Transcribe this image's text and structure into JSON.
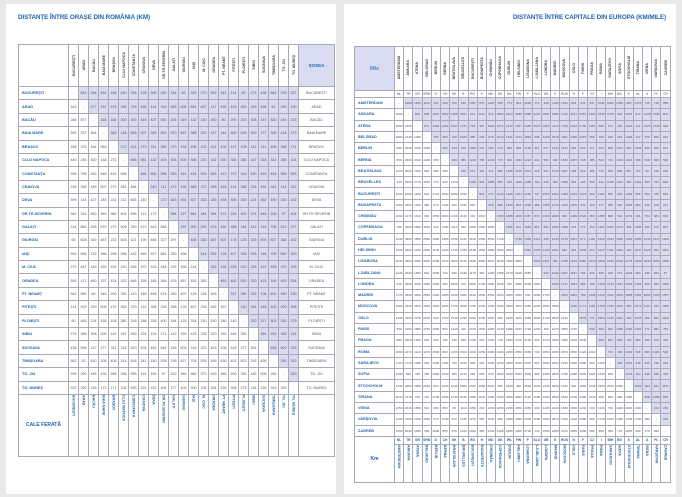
{
  "left_page": {
    "title": "DISTANȚE ÎNTRE ORAȘE DIN ROMÂNIA (KM)",
    "road_label": "ȘOSEA",
    "rail_label": "CALE FERATĂ",
    "cities": [
      "BUCUREȘTI",
      "ARAD",
      "BACĂU",
      "BAIA MARE",
      "BRAȘOV",
      "CLUJ NAPOCA",
      "CONSTANȚA",
      "CRAIOVA",
      "DEVA",
      "DR.TR.SEVERIN",
      "GALAȚI",
      "GIURGIU",
      "IAȘI",
      "M. CIUC",
      "ORADEA",
      "PT. NEAMȚ",
      "PITEȘTI",
      "PLOIEȘTI",
      "SIBIU",
      "SUCEAVA",
      "TIMIȘOARA",
      "TG. JIU",
      "TG. MUREȘ"
    ],
    "distances_upper": [
      [
        543,
        284,
        592,
        168,
        440,
        256,
        228,
        399,
        340,
        244,
        65,
        393,
        270,
        592,
        342,
        114,
        60,
        274,
        438,
        562,
        299,
        337
      ],
      [
        577,
        257,
        375,
        246,
        799,
        395,
        144,
        316,
        683,
        608,
        654,
        487,
        117,
        590,
        429,
        483,
        269,
        598,
        52,
        290,
        290
      ],
      [
        364,
        164,
        300,
        300,
        445,
        427,
        550,
        206,
        349,
        132,
        140,
        450,
        60,
        290,
        224,
        308,
        147,
        620,
        445,
        215
      ],
      [
        363,
        148,
        848,
        507,
        283,
        553,
        570,
        657,
        368,
        320,
        157,
        344,
        509,
        535,
        300,
        277,
        305,
        434,
        173
      ],
      [
        272,
        424,
        270,
        231,
        380,
        270,
        233,
        296,
        102,
        424,
        200,
        137,
        108,
        142,
        311,
        406,
        268,
        171
      ],
      [
        696,
        381,
        132,
        404,
        506,
        505,
        396,
        210,
        152,
        330,
        354,
        380,
        167,
        318,
        314,
        288,
        104
      ],
      [
        484,
        655,
        596,
        250,
        321,
        432,
        526,
        848,
        410,
        370,
        316,
        530,
        520,
        818,
        555,
        593
      ],
      [
        240,
        111,
        472,
        190,
        565,
        372,
        395,
        448,
        114,
        288,
        224,
        534,
        341,
        114,
        322
      ],
      [
        172,
        643,
        464,
        527,
        333,
        185,
        458,
        306,
        339,
        124,
        462,
        150,
        150,
        152
      ],
      [
        584,
        327,
        681,
        484,
        364,
        574,
        226,
        400,
        274,
        645,
        208,
        97,
        404
      ],
      [
        297,
        250,
        292,
        676,
        260,
        358,
        184,
        412,
        316,
        795,
        512,
        377
      ],
      [
        458,
        335,
        657,
        407,
        178,
        125,
        339,
        503,
        627,
        364,
        402
      ],
      [
        244,
        532,
        126,
        407,
        334,
        425,
        146,
        705,
        560,
        300
      ],
      [
        362,
        126,
        239,
        210,
        226,
        222,
        539,
        370,
        105
      ],
      [
        463,
        482,
        530,
        320,
        423,
        169,
        400,
        254
      ],
      [
        337,
        280,
        332,
        106,
        630,
        480,
        230
      ],
      [
        140,
        164,
        448,
        402,
        200,
        308
      ],
      [
        250,
        377,
        503,
        330,
        279
      ],
      [
        361,
        292,
        182,
        118
      ],
      [
        626,
        500,
        225
      ],
      [
        250,
        343
      ],
      [
        320
      ]
    ]
  },
  "right_page": {
    "title": "DISTANȚE ÎNTRE CAPITALE DIN EUROPA (KM/MILE)",
    "mile_label": "Mile",
    "km_label": "Km",
    "cities": [
      "AMSTERDAM",
      "ANKARA",
      "ATENA",
      "BELGRAD",
      "BERLIN",
      "BERNA",
      "BRATISLAVA",
      "BRUXELLES",
      "BUCUREȘTI",
      "BUDAPESTA",
      "CHIȘINĂU",
      "COPENHAGA",
      "DUBLIN",
      "HELSINKI",
      "LISABONA",
      "LJUBLJANA",
      "LONDRA",
      "MADRID",
      "MOSCOVA",
      "OSLO",
      "PARIS",
      "PRAGA",
      "ROMA",
      "SARAJEVO",
      "SOFIA",
      "STOCKHOLM",
      "TIRANA",
      "VIENA",
      "VARȘOVIA",
      "ZAGREB"
    ],
    "codes": [
      "NL",
      "TR",
      "GR",
      "SRB",
      "D",
      "CH",
      "SK",
      "B",
      "RO",
      "H",
      "MD",
      "DK",
      "IRL",
      "FIN",
      "P",
      "SLO",
      "GB",
      "E",
      "RUS",
      "N",
      "F",
      "CZ",
      "I",
      "BIH",
      "BG",
      "S",
      "AL",
      "A",
      "PL",
      "CR"
    ],
    "km_upper": [
      [
        3200,
        2950,
        1800,
        650,
        850,
        1210,
        210,
        2200,
        1400,
        2290,
        780,
        1240,
        1520,
        2240,
        1240,
        540,
        1770,
        2480,
        1340,
        500,
        880,
        1660,
        1720,
        2180,
        1440,
        2210,
        1150,
        1200,
        1350
      ],
      [
        1330,
        1440,
        2650,
        2900,
        2020,
        3000,
        1000,
        1820,
        1470,
        3000,
        3900,
        2960,
        4600,
        2030,
        3300,
        4000,
        2320,
        3400,
        3150,
        2300,
        2470,
        1730,
        840,
        3250,
        1310,
        2040,
        2100,
        1830
      ],
      [
        1080,
        2340,
        2340,
        1620,
        2770,
        1180,
        1460,
        1610,
        2690,
        3560,
        3150,
        4000,
        1650,
        3030,
        3400,
        2870,
        3270,
        2880,
        1900,
        1120,
        1080,
        790,
        3080,
        720,
        1650,
        2150,
        1480
      ],
      [
        1280,
        1430,
        560,
        1650,
        620,
        380,
        930,
        1630,
        2480,
        2050,
        3000,
        540,
        1960,
        2540,
        1900,
        2230,
        1750,
        900,
        1270,
        290,
        390,
        2040,
        720,
        610,
        1050,
        390
      ],
      [
        950,
        680,
        770,
        1710,
        870,
        1550,
        440,
        1580,
        1100,
        2800,
        1000,
        1090,
        2320,
        1820,
        840,
        1050,
        350,
        1500,
        1300,
        1660,
        810,
        1700,
        680,
        570,
        1000
      ],
      [
        980,
        620,
        1960,
        1140,
        2000,
        1150,
        1480,
        2130,
        1970,
        710,
        900,
        1500,
        2550,
        1750,
        560,
        780,
        860,
        1160,
        1640,
        1630,
        1560,
        850,
        1330,
        850
      ],
      [
        1130,
        1080,
        200,
        1160,
        1110,
        2150,
        1730,
        2920,
        390,
        1500,
        2430,
        1750,
        1510,
        1310,
        330,
        1150,
        730,
        980,
        1540,
        1230,
        80,
        670,
        370
      ],
      [
        2150,
        1330,
        2230,
        940,
        1040,
        1780,
        2070,
        1230,
        370,
        1580,
        2500,
        1490,
        310,
        900,
        1500,
        1670,
        2110,
        1580,
        2030,
        1110,
        1230,
        1320
      ],
      [
        830,
        440,
        2000,
        3100,
        2190,
        3640,
        1170,
        2500,
        3160,
        1760,
        2440,
        2370,
        1330,
        1900,
        900,
        390,
        2340,
        1060,
        1050,
        1270,
        1020
      ],
      [
        1010,
        1300,
        2300,
        1550,
        3090,
        460,
        1700,
        2600,
        1780,
        1730,
        1500,
        530,
        1250,
        620,
        800,
        1650,
        1100,
        240,
        680,
        350
      ],
      [
        1850,
        3040,
        1860,
        3810,
        1400,
        2580,
        3330,
        1350,
        2360,
        2450,
        1430,
        2180,
        1300,
        830,
        2220,
        1450,
        1230,
        1100,
        1340
      ],
      [
        1700,
        1000,
        3000,
        1380,
        1290,
        2500,
        2100,
        600,
        1240,
        730,
        1900,
        1690,
        2050,
        650,
        2100,
        1050,
        920,
        1380
      ],
      [
        2800,
        2300,
        2270,
        750,
        2000,
        3500,
        2200,
        1080,
        1900,
        2450,
        2660,
        3100,
        2400,
        3050,
        2150,
        2280,
        2360
      ],
      [
        3800,
        2100,
        2000,
        3300,
        1100,
        1100,
        2150,
        1470,
        2650,
        2240,
        2560,
        480,
        2650,
        1650,
        1050,
        1900
      ],
      [
        2580,
        2200,
        630,
        4450,
        3480,
        1740,
        2700,
        2580,
        2970,
        3530,
        3500,
        3120,
        2950,
        3300,
        2720
      ],
      [
        1560,
        2080,
        2200,
        1900,
        1230,
        690,
        780,
        560,
        920,
        1930,
        1100,
        380,
        1100,
        140
      ],
      [
        1720,
        2850,
        1740,
        460,
        1270,
        1850,
        2050,
        2480,
        1930,
        2400,
        1480,
        1600,
        1690
      ],
      [
        3900,
        3000,
        1270,
        2250,
        1950,
        2450,
        2950,
        3050,
        2550,
        2420,
        2870,
        2200
      ],
      [
        2140,
        2850,
        1900,
        2870,
        2150,
        1780,
        1420,
        2530,
        1830,
        1260,
        2070
      ],
      [
        1730,
        1240,
        2550,
        2300,
        2480,
        520,
        2700,
        1560,
        1420,
        1850
      ],
      [
        1030,
        1420,
        1600,
        2070,
        1850,
        1900,
        1240,
        1580,
        1260
      ],
      [
        1300,
        960,
        1320,
        1200,
        1420,
        330,
        680,
        660
      ],
      [
        1160,
        1200,
        2350,
        850,
        1120,
        1740,
        850
      ],
      [
        680,
        2050,
        560,
        700,
        1200,
        400
      ],
      [
        2380,
        650,
        1040,
        1480,
        770
      ],
      [
        2450,
        1600,
        1000,
        1830
      ],
      [
        1300,
        1700,
        900
      ],
      [
        680,
        370
      ],
      [
        990
      ]
    ]
  },
  "colors": {
    "accent": "#1f64ad",
    "shade": "#d9dcf1"
  }
}
